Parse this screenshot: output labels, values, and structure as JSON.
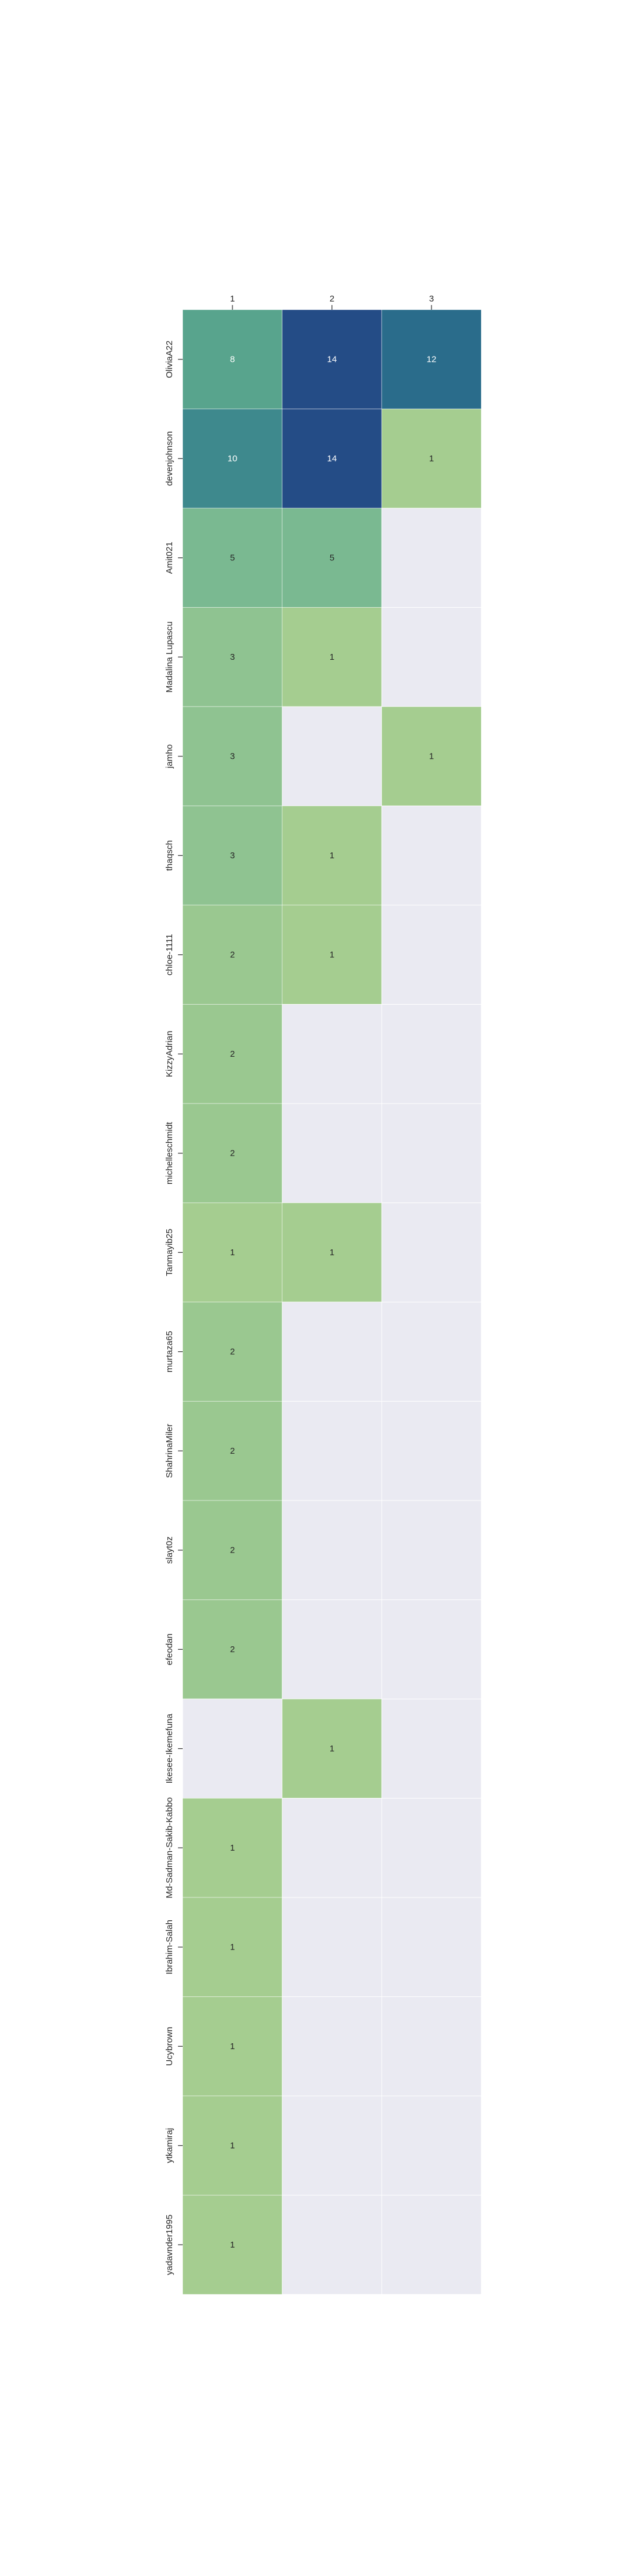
{
  "chart_data": {
    "type": "heatmap",
    "columns": [
      "1",
      "2",
      "3"
    ],
    "rows": [
      "OliviaA22",
      "devenjohnson",
      "Amit021",
      "Madalina Lupascu",
      "jamho",
      "thaqsch",
      "chloe-1111",
      "KizzyAdrian",
      "michelleschmidt",
      "Tanmayib25",
      "murtaza65",
      "ShahrinaMiler",
      "slayt0z",
      "efeodan",
      "Ikesee-Ikemefuna",
      "Md-Sadman-Sakib-Kabbo",
      "Ibrahim-Salah",
      "Ucybrown",
      "ytkamiraj",
      "yadavnder1995"
    ],
    "values": [
      [
        8,
        14,
        12
      ],
      [
        10,
        14,
        1
      ],
      [
        5,
        5,
        null
      ],
      [
        3,
        1,
        null
      ],
      [
        3,
        null,
        1
      ],
      [
        3,
        1,
        null
      ],
      [
        2,
        1,
        null
      ],
      [
        2,
        null,
        null
      ],
      [
        2,
        null,
        null
      ],
      [
        1,
        1,
        null
      ],
      [
        2,
        null,
        null
      ],
      [
        2,
        null,
        null
      ],
      [
        2,
        null,
        null
      ],
      [
        2,
        null,
        null
      ],
      [
        null,
        1,
        null
      ],
      [
        1,
        null,
        null
      ],
      [
        1,
        null,
        null
      ],
      [
        1,
        null,
        null
      ],
      [
        1,
        null,
        null
      ],
      [
        1,
        null,
        null
      ]
    ],
    "colormap": "crest",
    "empty_color": "#eaeaf2",
    "grid": false,
    "legend": "none"
  }
}
